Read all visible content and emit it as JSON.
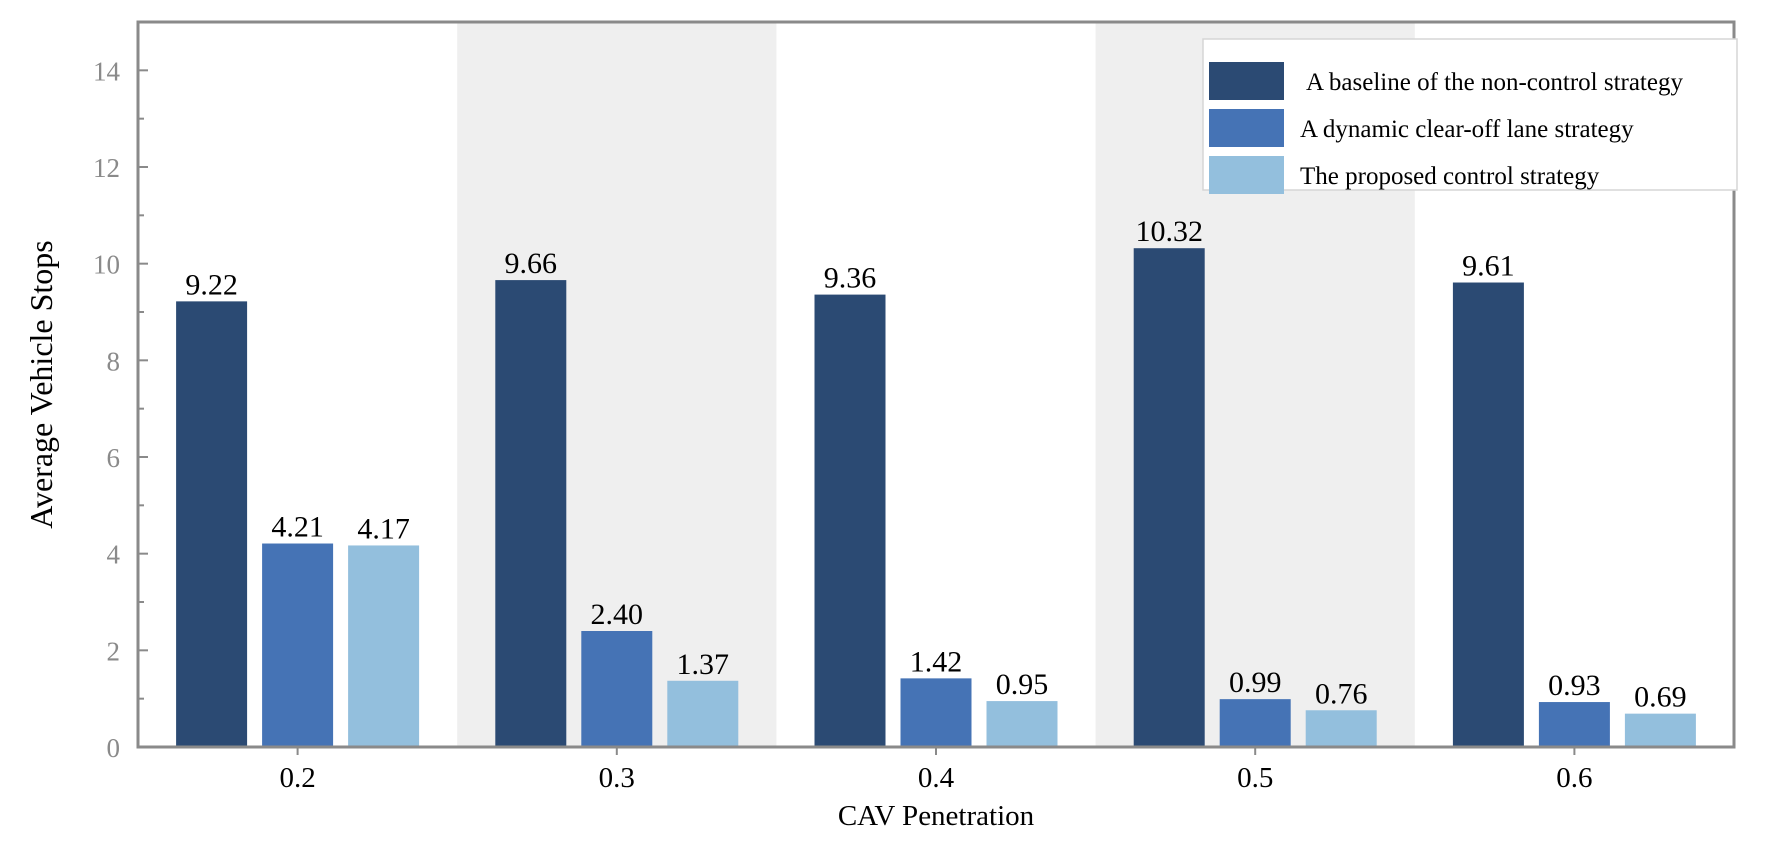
{
  "chart_data": {
    "type": "bar",
    "title": "",
    "xlabel": "CAV Penetration",
    "ylabel": "Average Vehicle Stops",
    "categories": [
      "0.2",
      "0.3",
      "0.4",
      "0.5",
      "0.6"
    ],
    "ylim": [
      0,
      15
    ],
    "yticks": [
      0,
      2,
      4,
      6,
      8,
      10,
      12,
      14
    ],
    "ytick_labels": [
      "0",
      "2",
      "4",
      "6",
      "8",
      "10",
      "12",
      "14"
    ],
    "series": [
      {
        "name": "A baseline of the non-control strategy",
        "color": "#2b4a73",
        "values": [
          9.22,
          9.66,
          9.36,
          10.32,
          9.61
        ],
        "labels": [
          "9.22",
          "9.66",
          "9.36",
          "10.32",
          "9.61"
        ]
      },
      {
        "name": "A dynamic clear-off lane strategy",
        "color": "#4573b5",
        "values": [
          4.21,
          2.4,
          1.42,
          0.99,
          0.93
        ],
        "labels": [
          "4.21",
          "2.40",
          "1.42",
          "0.99",
          "0.93"
        ]
      },
      {
        "name": "The proposed control strategy",
        "color": "#93bfdd",
        "values": [
          4.17,
          1.37,
          0.95,
          0.76,
          0.69
        ],
        "labels": [
          "4.17",
          "1.37",
          "0.95",
          "0.76",
          "0.69"
        ]
      }
    ],
    "alternating_band_color": "#efefef",
    "frame_color": "#8a8a8a",
    "tick_label_color": "#8a8a8a",
    "legend_position": "top-right",
    "grid": false
  }
}
